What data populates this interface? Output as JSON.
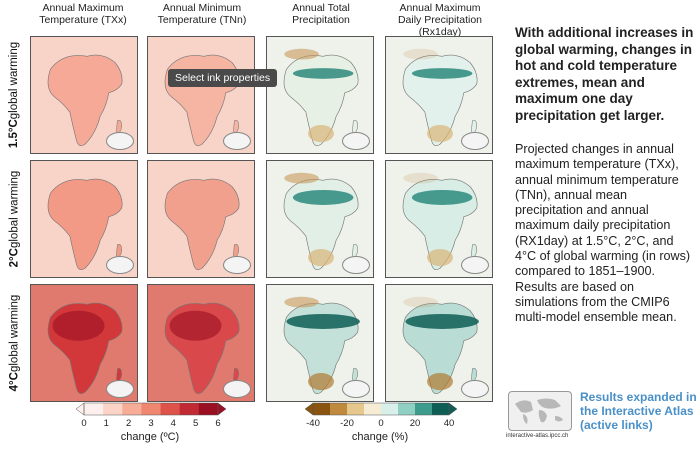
{
  "columns": [
    {
      "line1": "Annual Maximum",
      "line2": "Temperature (TXx)"
    },
    {
      "line1": "Annual Minimum",
      "line2": "Temperature (TNn)"
    },
    {
      "line1": "Annual Total",
      "line2": "Precipitation"
    },
    {
      "line1": "Annual Maximum",
      "line2": "Daily Precipitation (Rx1day)"
    }
  ],
  "rows": [
    {
      "level": "1.5°C",
      "suffix": " global warming"
    },
    {
      "level": "2°C",
      "suffix": " global warming"
    },
    {
      "level": "4°C",
      "suffix": " global warming"
    }
  ],
  "tooltip": "Select ink properties",
  "side": {
    "heading": "With additional increases in global warming, changes in hot and cold temperature extremes, mean and maximum one day precipitation get larger.",
    "body": "Projected changes in annual maximum temperature (TXx), annual minimum temperature (TNn), annual mean precipitation and annual maximum daily precipitation (RX1day) at 1.5°C, 2°C, and 4°C of global warming (in rows) compared to 1851–1900. Results are based on simulations from the CMIP6 multi-model ensemble mean."
  },
  "temp_colorbar": {
    "label": "change (ºC)",
    "ticks": [
      "0",
      "1",
      "2",
      "3",
      "4",
      "5",
      "6"
    ],
    "colors": [
      "#fdf0ec",
      "#fbd3c7",
      "#f5ad98",
      "#ee8670",
      "#dd5349",
      "#c12a32",
      "#9a0f22"
    ]
  },
  "precip_colorbar": {
    "label": "change (%)",
    "ticks": [
      "-40",
      "-20",
      "0",
      "20",
      "40"
    ],
    "colors": [
      "#8a5410",
      "#c08a3e",
      "#e6c78c",
      "#f6ecd4",
      "#d9efe9",
      "#8fd0c2",
      "#3e9c8c",
      "#0e5e56"
    ]
  },
  "atlas": {
    "caption": "interactive-atlas.ipcc.ch",
    "link": "Results expanded in the Interactive Atlas (active links)"
  },
  "panel_colors": {
    "row0": [
      "#f5a996",
      "#f6b4a3",
      "#e7f0e4",
      "#e2f1ec"
    ],
    "row1": [
      "#f29a85",
      "#f1a08d",
      "#e2efe6",
      "#d7ede6"
    ],
    "row2": [
      "#d2383a",
      "#d9484a",
      "#c3e1d8",
      "#b9ddd4"
    ]
  }
}
